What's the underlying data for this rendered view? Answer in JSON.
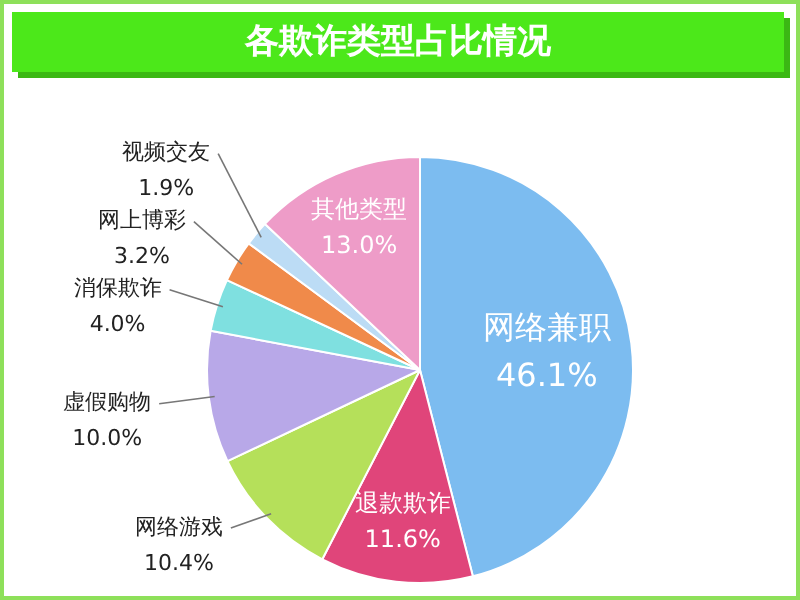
{
  "chart_data": {
    "type": "pie",
    "title": "各欺诈类型占比情况",
    "categories": [
      "网络兼职",
      "退款欺诈",
      "网络游戏",
      "虚假购物",
      "消保欺诈",
      "网上博彩",
      "视频交友",
      "其他类型"
    ],
    "values": [
      46.1,
      11.6,
      10.4,
      10.0,
      4.0,
      3.2,
      1.9,
      13.0
    ],
    "value_labels": [
      "46.1%",
      "11.6%",
      "10.4%",
      "10.0%",
      "4.0%",
      "3.2%",
      "1.9%",
      "13.0%"
    ],
    "colors": [
      "#7cbcf0",
      "#e0457a",
      "#b5e05a",
      "#b8a8e8",
      "#7fe0e0",
      "#f08a4a",
      "#bcdcf5",
      "#ee9cc8"
    ]
  }
}
